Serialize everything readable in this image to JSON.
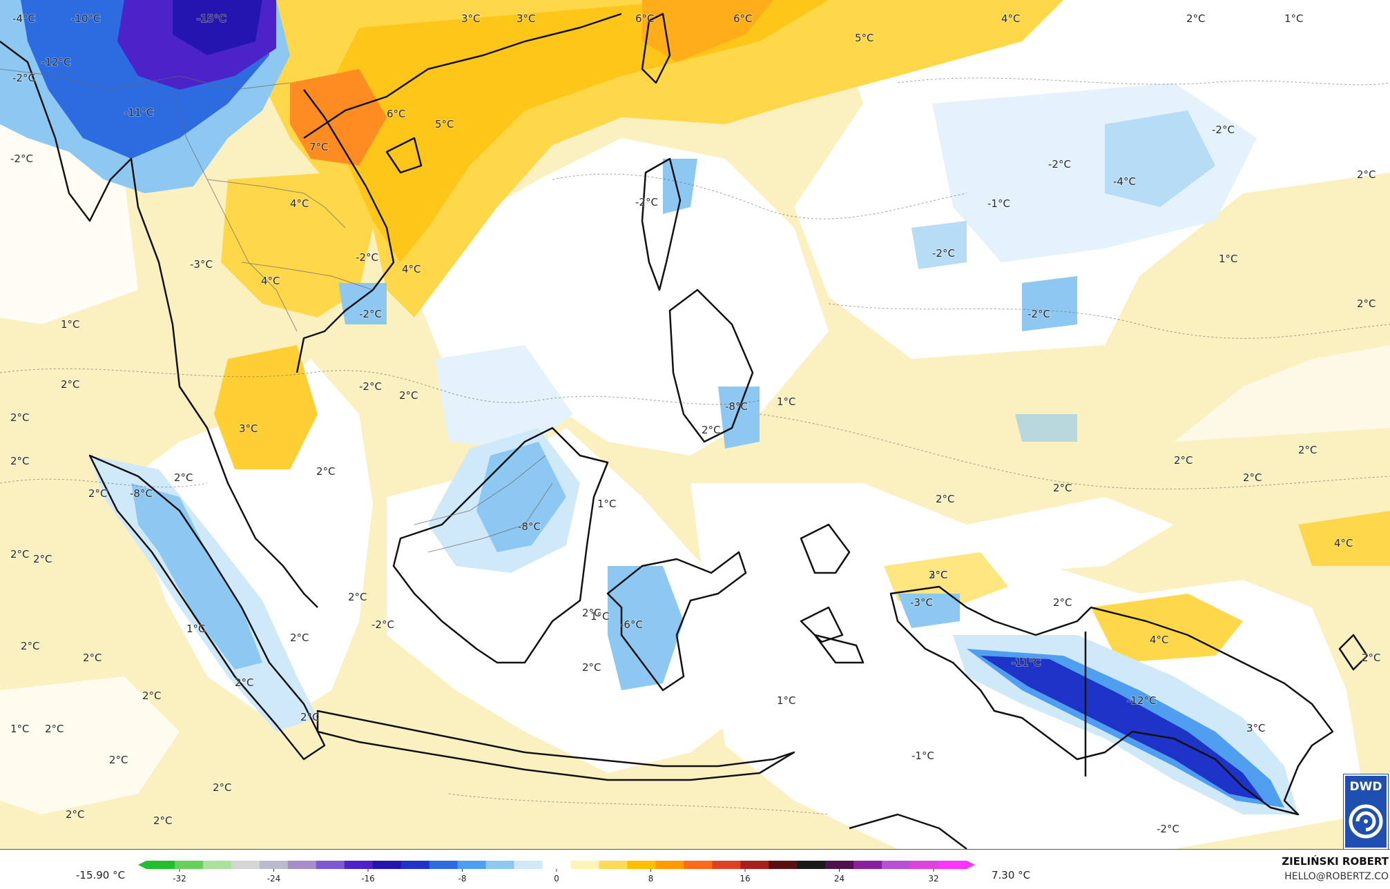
{
  "map": {
    "labels": [
      "-4°C",
      "-10°C",
      "-15°C",
      "-12°C",
      "-2°C",
      "-11°C",
      "-2°C",
      "3°C",
      "3°C",
      "6°C",
      "6°C",
      "4°C",
      "5°C",
      "2°C",
      "1°C",
      "6°C",
      "5°C",
      "7°C",
      "4°C",
      "-3°C",
      "4°C",
      "-2°C",
      "-2°C",
      "4°C",
      "-2°C",
      "-2°C",
      "-4°C",
      "-1°C",
      "-2°C",
      "2°C",
      "1°C",
      "-2°C",
      "2°C",
      "1°C",
      "2°C",
      "2°C",
      "2°C",
      "-2°C",
      "3°C",
      "-8°C",
      "2°C",
      "2°C",
      "2°C",
      "1°C",
      "2°C",
      "-8°C",
      "2°C",
      "-2°C",
      "1°C",
      "2°C",
      "2°C",
      "2°C",
      "2°C",
      "2°C",
      "2°C",
      "2°C",
      "-8°C",
      "1°C",
      "2°C",
      "2°C",
      "4°C",
      "2°C",
      "3°C",
      "-3°C",
      "2°C",
      "2°C",
      "-6°C",
      "-2°C",
      "1°C",
      "2°C",
      "2°C",
      "2°C",
      "4°C",
      "2°C",
      "-11°C",
      "-12°C",
      "3°C",
      "2°C",
      "2°C",
      "1°C",
      "2°C",
      "2°C",
      "1°C",
      "2°C",
      "2°C",
      "2°C",
      "2°C",
      "-1°C",
      "-2°C"
    ]
  },
  "colorbar": {
    "min_label": "-15.90 °C",
    "max_label": "7.30 °C",
    "ticks": [
      "-32",
      "-24",
      "-16",
      "-8",
      "0",
      "8",
      "16",
      "24",
      "32"
    ],
    "colors": [
      "#1fbf2e",
      "#67cf5a",
      "#a9e29a",
      "#d5d5d5",
      "#b9b9cf",
      "#a58ec9",
      "#7c5ad6",
      "#4b23c9",
      "#2415b0",
      "#1e33c8",
      "#2c6be0",
      "#4f9ef0",
      "#8cc8f2",
      "#cfe9f8",
      "#ffffff",
      "#fff3b8",
      "#ffdb55",
      "#ffbf00",
      "#ff9a00",
      "#ff6a1a",
      "#e04020",
      "#a8201c",
      "#5a1010",
      "#1a1a1a",
      "#50104e",
      "#8a1fa0",
      "#b84fd6",
      "#dc43dc",
      "#ff33ff"
    ]
  },
  "credit": {
    "name": "ZIELIŃSKI ROBERT",
    "email": "HELLO@ROBERTZ.CO"
  },
  "logo": {
    "text": "DWD"
  }
}
